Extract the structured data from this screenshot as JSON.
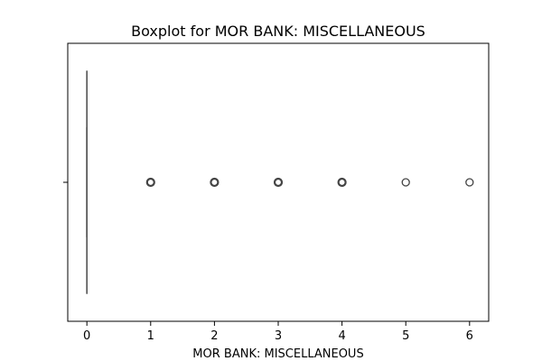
{
  "chart_data": {
    "type": "box",
    "orientation": "horizontal",
    "title": "Boxplot for MOR BANK: MISCELLANEOUS",
    "xlabel": "MOR BANK: MISCELLANEOUS",
    "ylabel": "",
    "xlim": [
      -0.3,
      6.3
    ],
    "xticks": [
      "0",
      "1",
      "2",
      "3",
      "4",
      "5",
      "6"
    ],
    "grid": false,
    "box": {
      "whisker_low": 0,
      "q1": 0,
      "median": 0,
      "q3": 0,
      "whisker_high": 0
    },
    "outliers": [
      1,
      2,
      3,
      4,
      5,
      6
    ],
    "colors": {
      "box": "#555555",
      "outlier": "#444444",
      "axes": "#000000"
    }
  }
}
